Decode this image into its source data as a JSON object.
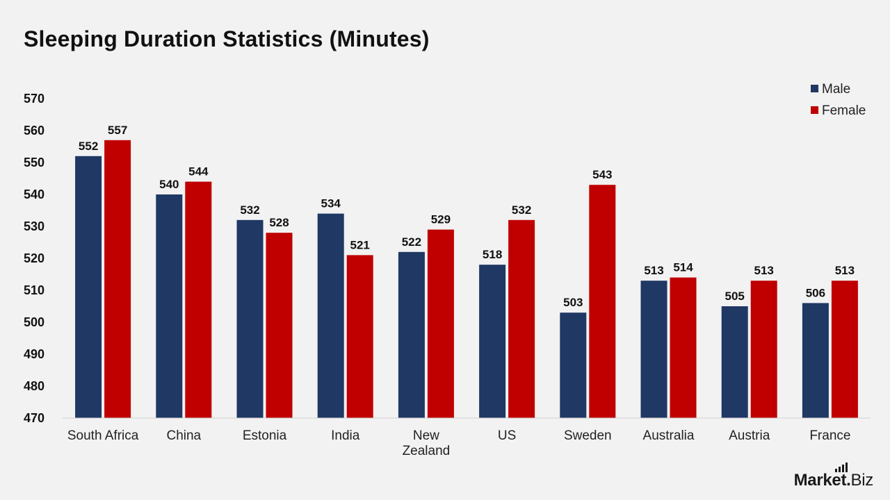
{
  "page": {
    "title": "Sleeping Duration Statistics (Minutes)"
  },
  "brand": {
    "main": "Market",
    "dot": ".",
    "sub": "Biz"
  },
  "colors": {
    "male": "#1f3864",
    "female": "#c00000",
    "axis": "#d0d0d0"
  },
  "chart_data": {
    "type": "bar",
    "title": "Sleeping Duration Statistics (Minutes)",
    "xlabel": "",
    "ylabel": "",
    "ylim": [
      470,
      570
    ],
    "yticks": [
      570,
      560,
      550,
      540,
      530,
      520,
      510,
      500,
      490,
      480,
      470
    ],
    "grid": false,
    "legend_position": "top-right",
    "categories": [
      [
        "South Africa"
      ],
      [
        "China"
      ],
      [
        "Estonia"
      ],
      [
        "India"
      ],
      [
        "New",
        "Zealand"
      ],
      [
        "US"
      ],
      [
        "Sweden"
      ],
      [
        "Australia"
      ],
      [
        "Austria"
      ],
      [
        "France"
      ]
    ],
    "series": [
      {
        "name": "Male",
        "color": "#1f3864",
        "values": [
          552,
          540,
          532,
          534,
          522,
          518,
          503,
          513,
          505,
          506
        ]
      },
      {
        "name": "Female",
        "color": "#c00000",
        "values": [
          557,
          544,
          528,
          521,
          529,
          532,
          543,
          514,
          513,
          513
        ]
      }
    ]
  }
}
